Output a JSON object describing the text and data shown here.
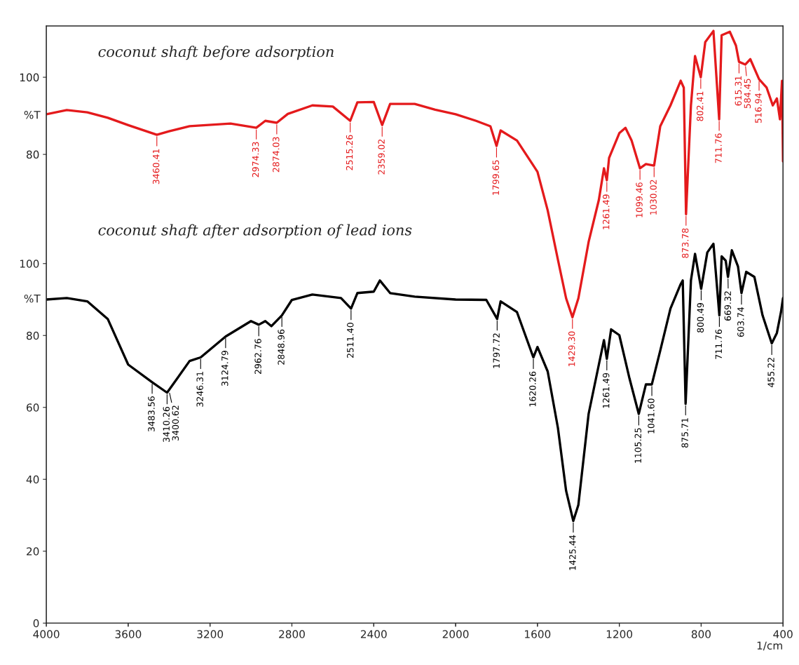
{
  "chart_data": [
    {
      "type": "line",
      "title": "coconut shaft before adsorption",
      "ylabel": "%T",
      "tick_labels": "y",
      "xlim": [
        4000,
        400
      ],
      "xticks": [
        4000,
        3600,
        3200,
        2800,
        2400,
        2000,
        1600,
        1200,
        800,
        400
      ],
      "ylim": [
        -41.5,
        113.3
      ],
      "yticks": [
        80,
        100
      ],
      "x": [
        4000,
        3900,
        3800,
        3700,
        3600,
        3460,
        3400,
        3300,
        3100,
        2974,
        2930,
        2874,
        2820,
        2700,
        2600,
        2515,
        2480,
        2400,
        2359,
        2320,
        2200,
        2100,
        2000,
        1900,
        1830,
        1800,
        1780,
        1700,
        1600,
        1550,
        1500,
        1460,
        1429,
        1400,
        1350,
        1300,
        1275,
        1261,
        1250,
        1200,
        1170,
        1140,
        1099,
        1070,
        1030,
        1000,
        950,
        900,
        885,
        874,
        850,
        830,
        802,
        780,
        740,
        712,
        700,
        660,
        630,
        615,
        584,
        560,
        517,
        480,
        450,
        430,
        415,
        405,
        400
      ],
      "series": [
        {
          "color": "#e41a1c",
          "values": [
            90.4,
            91.5,
            90.9,
            89.5,
            87.6,
            85.1,
            86,
            87.3,
            88,
            86.9,
            88.7,
            88.2,
            90.5,
            92.7,
            92.4,
            88.7,
            93.5,
            93.6,
            87.6,
            93.1,
            93.1,
            91.6,
            90.4,
            88.7,
            87.3,
            82.2,
            86.2,
            83.6,
            75.5,
            65.5,
            52.7,
            42.7,
            37.8,
            42.7,
            57.3,
            68.2,
            76.4,
            73.3,
            79.1,
            85.5,
            86.9,
            83.6,
            76.4,
            77.5,
            77.1,
            87.3,
            92.7,
            99.1,
            97.3,
            64.5,
            92.7,
            105.5,
            100,
            109.1,
            112,
            89.1,
            110.9,
            111.8,
            108.2,
            104,
            103.3,
            104.7,
            99.5,
            97.3,
            92.7,
            94.5,
            89.1,
            99.1,
            78.2
          ]
        }
      ],
      "annotations": [
        {
          "text": "3460.41",
          "x": 3460,
          "y": 85.1
        },
        {
          "text": "2974.33",
          "x": 2974,
          "y": 86.9
        },
        {
          "text": "2874.03",
          "x": 2874,
          "y": 88.2
        },
        {
          "text": "2515.26",
          "x": 2515,
          "y": 88.7
        },
        {
          "text": "2359.02",
          "x": 2359,
          "y": 87.6
        },
        {
          "text": "1799.65",
          "x": 1800,
          "y": 82.2
        },
        {
          "text": "1429.30",
          "x": 1429,
          "y": 37.8
        },
        {
          "text": "1261.49",
          "x": 1261,
          "y": 73.3
        },
        {
          "text": "1099.46",
          "x": 1099,
          "y": 76.4
        },
        {
          "text": "1030.02",
          "x": 1030,
          "y": 77.1
        },
        {
          "text": "873.78",
          "x": 874,
          "y": 64.5
        },
        {
          "text": "802.41",
          "x": 802,
          "y": 100
        },
        {
          "text": "711.76",
          "x": 712,
          "y": 89.1
        },
        {
          "text": "615.31",
          "x": 615,
          "y": 104
        },
        {
          "text": "584.45",
          "x": 584,
          "y": 103.3
        },
        {
          "text": "516.94",
          "x": 517,
          "y": 99.5
        }
      ]
    },
    {
      "type": "line",
      "title": "coconut shaft after adsorption of lead ions",
      "ylabel": "%T",
      "xlabel": "1/cm",
      "xlim": [
        4000,
        400
      ],
      "xticks": [
        4000,
        3600,
        3200,
        2800,
        2400,
        2000,
        1600,
        1200,
        800,
        400
      ],
      "ylim": [
        0,
        166.1
      ],
      "yticks": [
        0,
        20,
        40,
        60,
        80,
        100
      ],
      "x": [
        4000,
        3900,
        3800,
        3700,
        3600,
        3483,
        3410,
        3300,
        3246,
        3124,
        3000,
        2962,
        2930,
        2900,
        2849,
        2800,
        2700,
        2560,
        2511,
        2480,
        2400,
        2370,
        2320,
        2200,
        2000,
        1850,
        1797,
        1780,
        1700,
        1620,
        1600,
        1550,
        1500,
        1460,
        1425,
        1400,
        1350,
        1300,
        1275,
        1261,
        1240,
        1200,
        1150,
        1105,
        1070,
        1041,
        1000,
        950,
        900,
        890,
        876,
        850,
        830,
        800,
        770,
        740,
        711,
        700,
        680,
        669,
        650,
        620,
        603,
        580,
        540,
        500,
        455,
        430,
        410,
        400
      ],
      "series": [
        {
          "color": "#000000",
          "values": [
            90,
            90.4,
            89.5,
            84.6,
            71.9,
            67,
            64.1,
            72.9,
            73.9,
            79.7,
            84,
            83,
            84,
            82.6,
            85.6,
            89.9,
            91.4,
            90.4,
            87.5,
            91.8,
            92.2,
            95.3,
            91.8,
            90.8,
            90,
            89.9,
            84.6,
            89.5,
            86.5,
            73.9,
            76.8,
            70,
            54.3,
            36.8,
            28.4,
            32.9,
            58.2,
            71.9,
            78.7,
            73.5,
            81.7,
            80.1,
            68,
            58.2,
            66.4,
            66.4,
            75.8,
            87.5,
            94.3,
            95.3,
            61,
            95.3,
            102.7,
            93,
            103.1,
            105.5,
            85.6,
            102,
            100.8,
            96.3,
            103.7,
            99.2,
            91.8,
            97.7,
            96.3,
            85.6,
            77.8,
            80.7,
            86.5,
            90.4
          ]
        }
      ],
      "annotations": [
        {
          "text": "3483.56",
          "x": 3483,
          "y": 67
        },
        {
          "text": "3410.26",
          "x": 3410,
          "y": 64.1
        },
        {
          "text": "3400.62",
          "x": 3400,
          "y": 64.5
        },
        {
          "text": "3246.31",
          "x": 3246,
          "y": 73.9
        },
        {
          "text": "3124.79",
          "x": 3124,
          "y": 79.7
        },
        {
          "text": "2962.76",
          "x": 2962,
          "y": 83
        },
        {
          "text": "2848.96",
          "x": 2849,
          "y": 85.6
        },
        {
          "text": "2511.40",
          "x": 2511,
          "y": 87.5
        },
        {
          "text": "1797.72",
          "x": 1797,
          "y": 84.6
        },
        {
          "text": "1620.26",
          "x": 1620,
          "y": 73.9
        },
        {
          "text": "1425.44",
          "x": 1425,
          "y": 28.4
        },
        {
          "text": "1261.49",
          "x": 1261,
          "y": 73.5
        },
        {
          "text": "1105.25",
          "x": 1105,
          "y": 58.2
        },
        {
          "text": "1041.60",
          "x": 1041,
          "y": 66.4
        },
        {
          "text": "875.71",
          "x": 876,
          "y": 61
        },
        {
          "text": "800.49",
          "x": 800,
          "y": 93
        },
        {
          "text": "711.76",
          "x": 711,
          "y": 85.6
        },
        {
          "text": "669.32",
          "x": 669,
          "y": 96.3
        },
        {
          "text": "603.74",
          "x": 603,
          "y": 91.8
        },
        {
          "text": "455.22",
          "x": 455,
          "y": 77.8
        }
      ]
    }
  ]
}
